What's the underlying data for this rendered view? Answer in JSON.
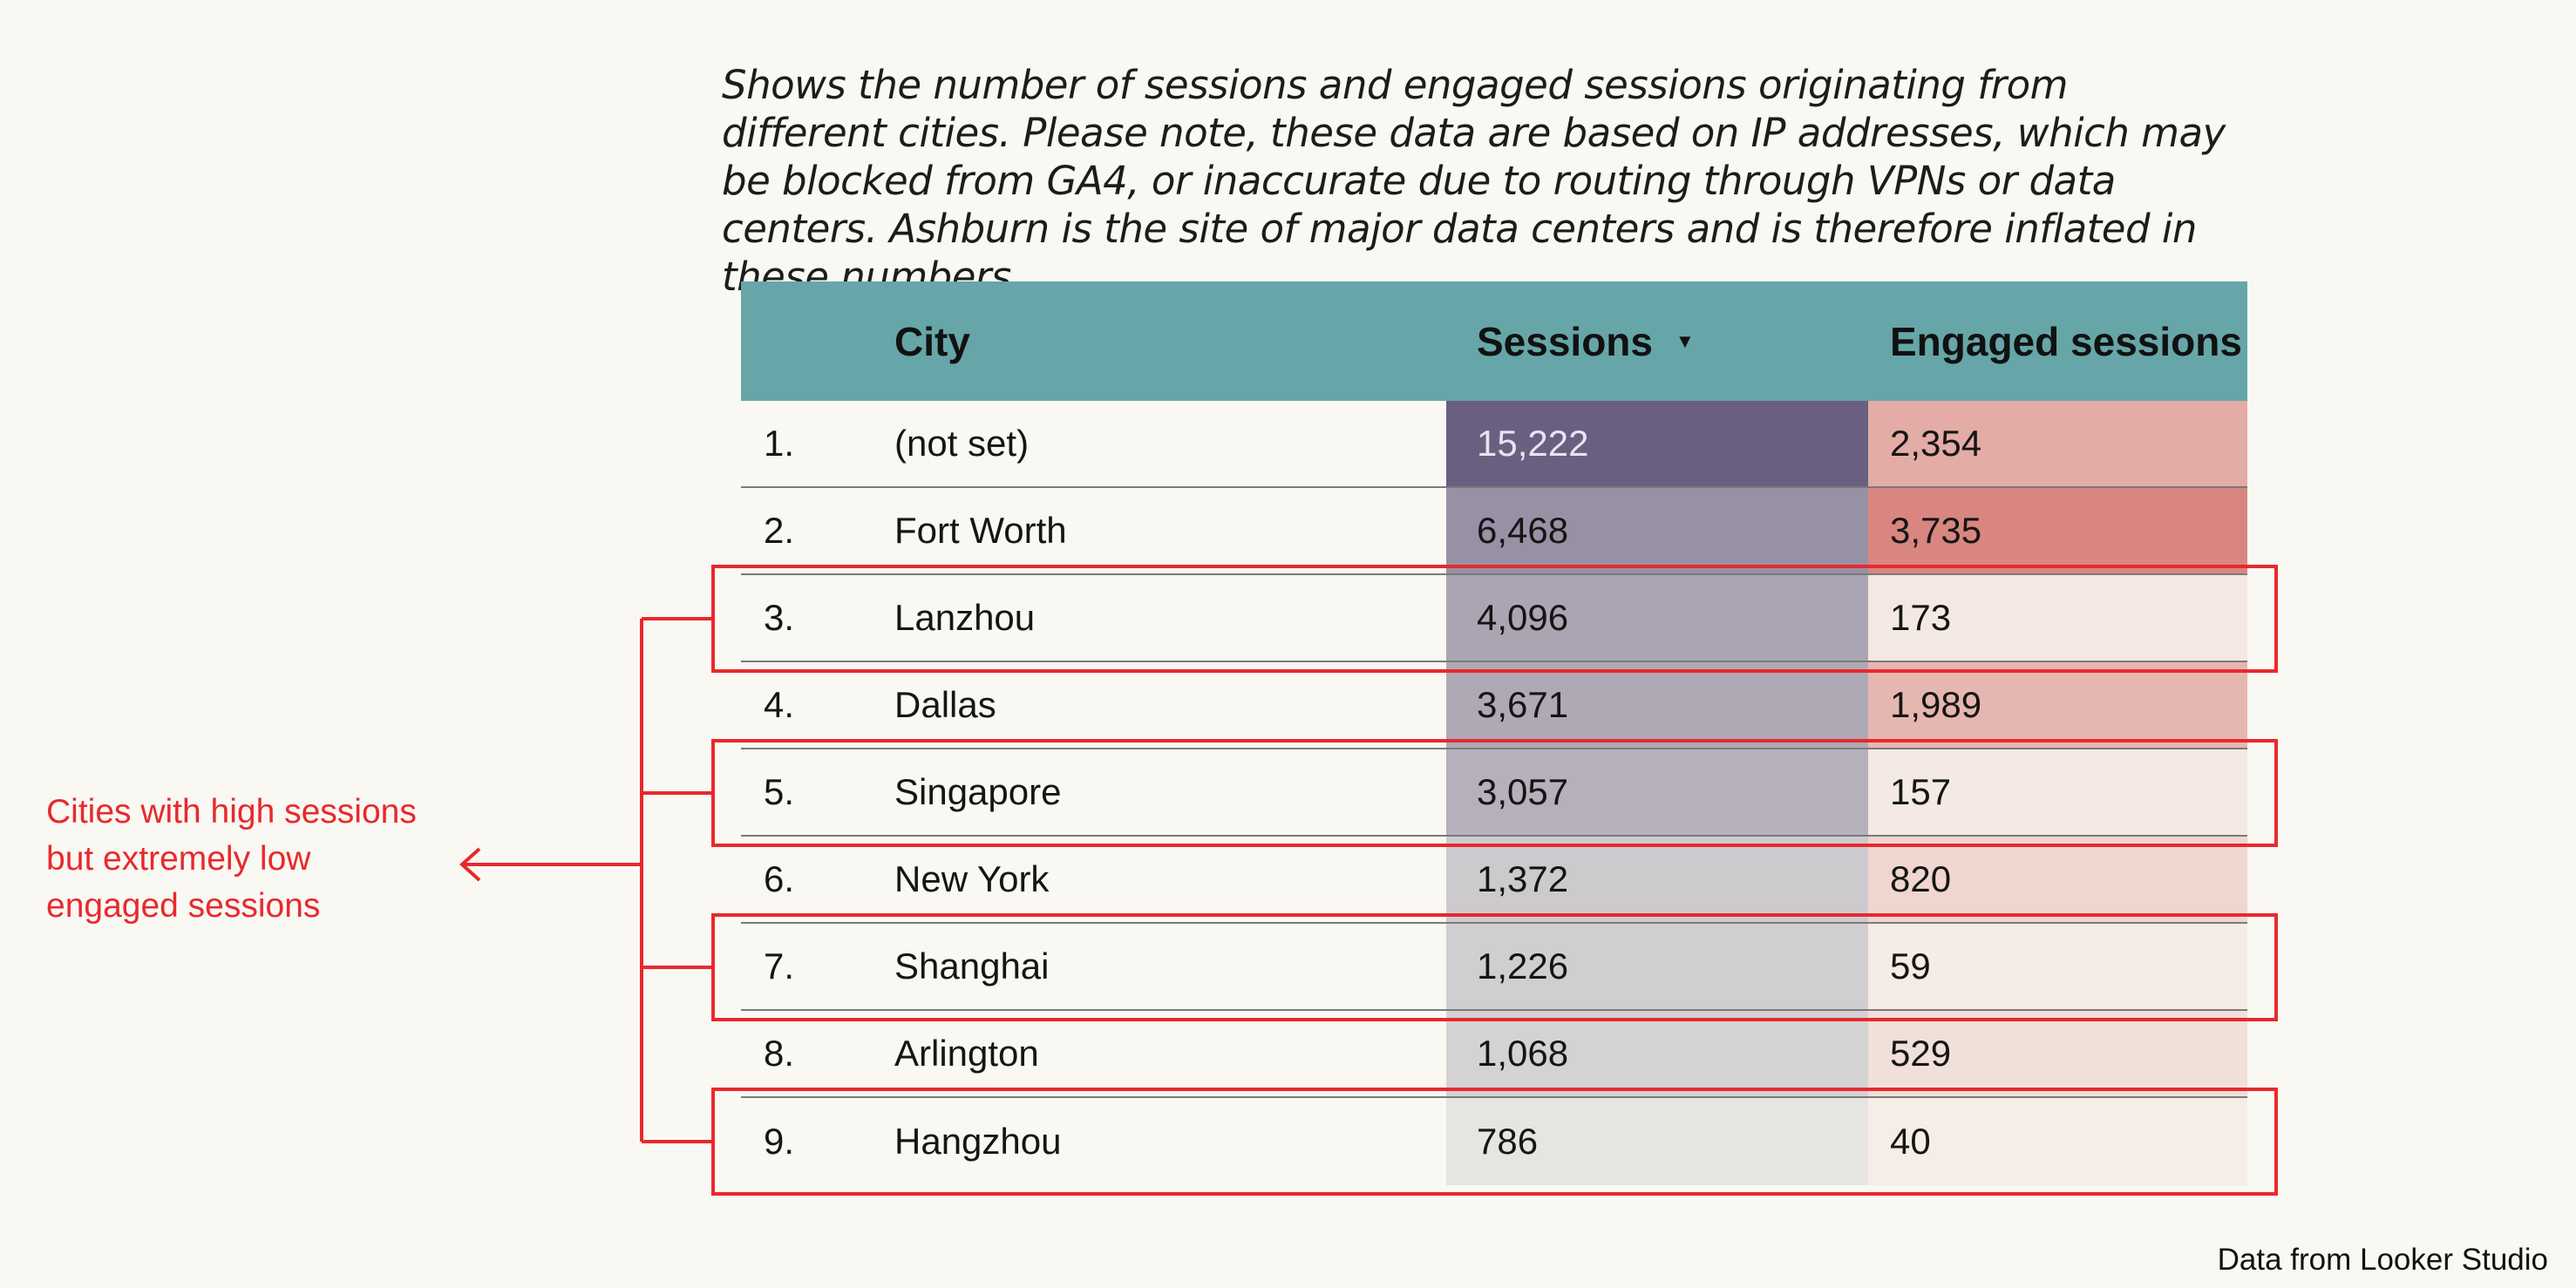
{
  "description": "Shows the number of sessions and engaged sessions originating from different cities. Please note, these data are based on IP addresses, which may be blocked from GA4, or inaccurate due to routing through VPNs or data centers. Ashburn is the site of major data centers and is therefore inflated in these numbers.",
  "table": {
    "headers": {
      "city": "City",
      "sessions": "Sessions",
      "sort_icon": "sort-descending-icon",
      "engaged": "Engaged sessions"
    },
    "rows": [
      {
        "num": "1.",
        "city": "(not set)",
        "sessions": "15,222",
        "engaged": "2,354",
        "highlighted": false
      },
      {
        "num": "2.",
        "city": "Fort Worth",
        "sessions": "6,468",
        "engaged": "3,735",
        "highlighted": false
      },
      {
        "num": "3.",
        "city": "Lanzhou",
        "sessions": "4,096",
        "engaged": "173",
        "highlighted": true
      },
      {
        "num": "4.",
        "city": "Dallas",
        "sessions": "3,671",
        "engaged": "1,989",
        "highlighted": false
      },
      {
        "num": "5.",
        "city": "Singapore",
        "sessions": "3,057",
        "engaged": "157",
        "highlighted": true
      },
      {
        "num": "6.",
        "city": "New York",
        "sessions": "1,372",
        "engaged": "820",
        "highlighted": false
      },
      {
        "num": "7.",
        "city": "Shanghai",
        "sessions": "1,226",
        "engaged": "59",
        "highlighted": true
      },
      {
        "num": "8.",
        "city": "Arlington",
        "sessions": "1,068",
        "engaged": "529",
        "highlighted": false
      },
      {
        "num": "9.",
        "city": "Hangzhou",
        "sessions": "786",
        "engaged": "40",
        "highlighted": true
      }
    ]
  },
  "annotation": "Cities with high sessions but extremely low engaged sessions",
  "footer": "Data from Looker Studio",
  "colors": {
    "header_bg": "#66a6a8",
    "sessions_heat_high": "#6a5f80",
    "sessions_heat_low": "#e6e5e2",
    "engaged_heat_high": "#d98680",
    "engaged_heat_low": "#f5ede6",
    "annotation": "#e8292d"
  },
  "chart_data": {
    "type": "table",
    "columns": [
      "City",
      "Sessions",
      "Engaged sessions"
    ],
    "categories": [
      "(not set)",
      "Fort Worth",
      "Lanzhou",
      "Dallas",
      "Singapore",
      "New York",
      "Shanghai",
      "Arlington",
      "Hangzhou"
    ],
    "series": [
      {
        "name": "Sessions",
        "values": [
          15222,
          6468,
          4096,
          3671,
          3057,
          1372,
          1226,
          1068,
          786
        ]
      },
      {
        "name": "Engaged sessions",
        "values": [
          2354,
          3735,
          173,
          1989,
          157,
          820,
          59,
          529,
          40
        ]
      }
    ],
    "sort": "Sessions descending"
  }
}
